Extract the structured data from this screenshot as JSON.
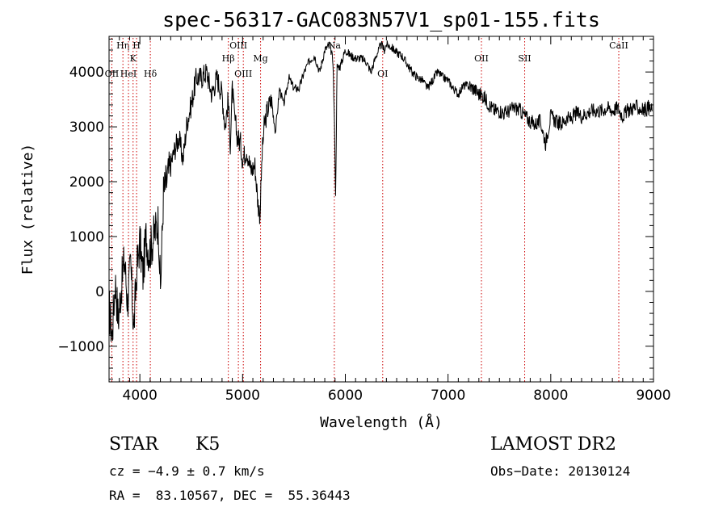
{
  "chart_data": {
    "type": "line",
    "title": "spec-56317-GAC083N57V1_sp01-155.fits",
    "xlabel": "Wavelength (Å)",
    "ylabel": "Flux (relative)",
    "xlim": [
      3700,
      9000
    ],
    "ylim": [
      -1650,
      4650
    ],
    "x_ticks": [
      4000,
      5000,
      6000,
      7000,
      8000,
      9000
    ],
    "y_ticks": [
      -1000,
      0,
      1000,
      2000,
      3000,
      4000
    ],
    "grid": false,
    "line_color": "#000000",
    "marker_color": "#cc0000",
    "series": [
      {
        "x": [
          3700,
          3730,
          3760,
          3790,
          3820,
          3850,
          3880,
          3910,
          3940,
          3970,
          4000,
          4030,
          4060,
          4090,
          4120,
          4150,
          4180,
          4200,
          4230,
          4260,
          4300,
          4340,
          4380,
          4420,
          4460,
          4500,
          4550,
          4600,
          4650,
          4700,
          4750,
          4800,
          4830,
          4860,
          4880,
          4900,
          4920,
          4950,
          4980,
          5000,
          5040,
          5080,
          5120,
          5150,
          5170,
          5190,
          5210,
          5240,
          5280,
          5320,
          5360,
          5400,
          5450,
          5500,
          5550,
          5600,
          5650,
          5700,
          5750,
          5800,
          5850,
          5880,
          5895,
          5905,
          5920,
          5950,
          6000,
          6050,
          6100,
          6150,
          6200,
          6250,
          6300,
          6350,
          6380,
          6400,
          6450,
          6500,
          6550,
          6600,
          6650,
          6700,
          6750,
          6800,
          6850,
          6900,
          6950,
          7000,
          7050,
          7100,
          7150,
          7200,
          7250,
          7300,
          7350,
          7400,
          7450,
          7500,
          7550,
          7600,
          7650,
          7700,
          7750,
          7800,
          7850,
          7900,
          7950,
          8000,
          8050,
          8100,
          8150,
          8200,
          8250,
          8300,
          8350,
          8400,
          8450,
          8500,
          8550,
          8600,
          8650,
          8700,
          8750,
          8800,
          8850,
          8900,
          8950,
          8990
        ],
        "y": [
          -300,
          -800,
          200,
          -500,
          100,
          600,
          -200,
          500,
          -700,
          400,
          900,
          300,
          1000,
          700,
          900,
          1100,
          1300,
          0,
          1800,
          2000,
          2300,
          2600,
          2800,
          2400,
          3100,
          3400,
          3900,
          3900,
          4000,
          3600,
          3900,
          3600,
          3000,
          3500,
          2700,
          3700,
          3200,
          2800,
          2700,
          2400,
          2600,
          2200,
          2300,
          1600,
          1400,
          2500,
          3000,
          3300,
          3500,
          2900,
          3700,
          3400,
          3900,
          3700,
          3700,
          4000,
          4200,
          4300,
          4000,
          4400,
          4500,
          4200,
          3000,
          1700,
          4100,
          4100,
          4400,
          4300,
          4250,
          4250,
          4200,
          4000,
          4300,
          4500,
          4400,
          4500,
          4450,
          4350,
          4300,
          4150,
          4000,
          3900,
          3850,
          3700,
          3850,
          4000,
          3900,
          3850,
          3700,
          3600,
          3750,
          3750,
          3700,
          3600,
          3550,
          3400,
          3300,
          3300,
          3250,
          3300,
          3350,
          3300,
          3200,
          3100,
          3050,
          3100,
          2700,
          3200,
          3100,
          3050,
          3150,
          3150,
          3250,
          3200,
          3250,
          3300,
          3300,
          3300,
          3350,
          3300,
          3350,
          3200,
          3300,
          3350,
          3350,
          3300,
          3350,
          3300
        ]
      }
    ],
    "line_markers": [
      {
        "label": "OII",
        "x": 3727,
        "row": 2
      },
      {
        "label": "Hη",
        "x": 3835,
        "row": 0
      },
      {
        "label": "HeI",
        "x": 3889,
        "row": 2
      },
      {
        "label": "K",
        "x": 3934,
        "row": 1
      },
      {
        "label": "H",
        "x": 3968,
        "row": 0
      },
      {
        "label": "Hδ",
        "x": 4102,
        "row": 2
      },
      {
        "label": "Hβ",
        "x": 4861,
        "row": 1
      },
      {
        "label": "OIII",
        "x": 4959,
        "row": 0
      },
      {
        "label": "OIII",
        "x": 5007,
        "row": 2
      },
      {
        "label": "Mg",
        "x": 5175,
        "row": 1
      },
      {
        "label": "Na",
        "x": 5893,
        "row": 0
      },
      {
        "label": "OI",
        "x": 6364,
        "row": 2
      },
      {
        "label": "OII",
        "x": 7325,
        "row": 1
      },
      {
        "label": "SII",
        "x": 7746,
        "row": 1
      },
      {
        "label": "CaII",
        "x": 8662,
        "row": 0
      }
    ]
  },
  "info": {
    "object_class": "STAR",
    "subclass": "K5",
    "survey": "LAMOST DR2",
    "redshift": "cz = −4.9 ± 0.7 km/s",
    "obs_date": "Obs−Date: 20130124",
    "coords": "RA =  83.10567, DEC =  55.36443"
  }
}
